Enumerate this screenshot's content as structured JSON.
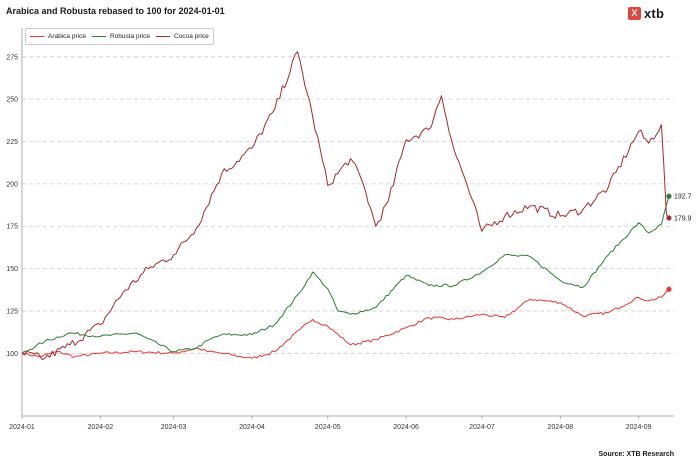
{
  "title": "Arabica and Robusta rebased to 100 for 2024-01-01",
  "logo": {
    "mark": "X",
    "text": "xtb"
  },
  "source": "Source: XTB Research",
  "chart_data": {
    "type": "line",
    "title": "Arabica and Robusta rebased to 100 for 2024-01-01",
    "xlabel": "",
    "ylabel": "",
    "x_range": [
      "2024-01-01",
      "2024-09-15"
    ],
    "ylim": [
      63,
      292
    ],
    "yticks": [
      100,
      125,
      150,
      175,
      200,
      225,
      250,
      275
    ],
    "xticks": [
      "2024-01",
      "2024-02",
      "2024-03",
      "2024-04",
      "2024-05",
      "2024-06",
      "2024-07",
      "2024-08",
      "2024-09"
    ],
    "grid": "horizontal dashed",
    "legend": "top-left",
    "series": [
      {
        "name": "Arabica price",
        "color": "#e53935",
        "end_label": null,
        "points": [
          [
            "2024-01-01",
            100
          ],
          [
            "2024-01-08",
            98
          ],
          [
            "2024-01-15",
            101
          ],
          [
            "2024-01-22",
            98
          ],
          [
            "2024-02-01",
            100
          ],
          [
            "2024-02-15",
            101
          ],
          [
            "2024-03-01",
            100
          ],
          [
            "2024-03-10",
            103
          ],
          [
            "2024-03-15",
            101
          ],
          [
            "2024-03-20",
            100
          ],
          [
            "2024-04-01",
            97
          ],
          [
            "2024-04-10",
            101
          ],
          [
            "2024-04-20",
            114
          ],
          [
            "2024-04-25",
            120
          ],
          [
            "2024-05-01",
            116
          ],
          [
            "2024-05-10",
            105
          ],
          [
            "2024-05-20",
            108
          ],
          [
            "2024-06-01",
            115
          ],
          [
            "2024-06-10",
            121
          ],
          [
            "2024-06-20",
            120
          ],
          [
            "2024-07-01",
            123
          ],
          [
            "2024-07-10",
            121
          ],
          [
            "2024-07-20",
            132
          ],
          [
            "2024-08-01",
            130
          ],
          [
            "2024-08-10",
            122
          ],
          [
            "2024-08-20",
            124
          ],
          [
            "2024-09-01",
            133
          ],
          [
            "2024-09-05",
            131
          ],
          [
            "2024-09-10",
            133
          ],
          [
            "2024-09-13",
            137.8
          ]
        ]
      },
      {
        "name": "Robusta price",
        "color": "#2e7d32",
        "end_label": "192.7",
        "points": [
          [
            "2024-01-01",
            100
          ],
          [
            "2024-01-10",
            107
          ],
          [
            "2024-01-20",
            112
          ],
          [
            "2024-02-01",
            110
          ],
          [
            "2024-02-15",
            112
          ],
          [
            "2024-03-01",
            101
          ],
          [
            "2024-03-10",
            103
          ],
          [
            "2024-03-15",
            108
          ],
          [
            "2024-03-20",
            111
          ],
          [
            "2024-04-01",
            111
          ],
          [
            "2024-04-10",
            117
          ],
          [
            "2024-04-20",
            136
          ],
          [
            "2024-04-25",
            148
          ],
          [
            "2024-05-01",
            138
          ],
          [
            "2024-05-05",
            125
          ],
          [
            "2024-05-10",
            123
          ],
          [
            "2024-05-20",
            127
          ],
          [
            "2024-06-01",
            146
          ],
          [
            "2024-06-10",
            140
          ],
          [
            "2024-06-20",
            140
          ],
          [
            "2024-07-01",
            148
          ],
          [
            "2024-07-10",
            158
          ],
          [
            "2024-07-20",
            157
          ],
          [
            "2024-08-01",
            143
          ],
          [
            "2024-08-10",
            139
          ],
          [
            "2024-08-20",
            158
          ],
          [
            "2024-09-01",
            177
          ],
          [
            "2024-09-05",
            171
          ],
          [
            "2024-09-10",
            176
          ],
          [
            "2024-09-13",
            192.7
          ]
        ]
      },
      {
        "name": "Cocoa price",
        "color": "#a52a2a",
        "end_label": "179.9",
        "points": [
          [
            "2024-01-01",
            100
          ],
          [
            "2024-01-10",
            97
          ],
          [
            "2024-01-20",
            105
          ],
          [
            "2024-02-01",
            117
          ],
          [
            "2024-02-10",
            136
          ],
          [
            "2024-02-20",
            150
          ],
          [
            "2024-03-01",
            158
          ],
          [
            "2024-03-10",
            174
          ],
          [
            "2024-03-20",
            206
          ],
          [
            "2024-04-01",
            221
          ],
          [
            "2024-04-10",
            244
          ],
          [
            "2024-04-19",
            278
          ],
          [
            "2024-04-25",
            240
          ],
          [
            "2024-05-01",
            199
          ],
          [
            "2024-05-10",
            215
          ],
          [
            "2024-05-15",
            200
          ],
          [
            "2024-05-20",
            175
          ],
          [
            "2024-05-25",
            190
          ],
          [
            "2024-06-01",
            226
          ],
          [
            "2024-06-10",
            232
          ],
          [
            "2024-06-15",
            252
          ],
          [
            "2024-06-20",
            220
          ],
          [
            "2024-06-25",
            200
          ],
          [
            "2024-07-01",
            172
          ],
          [
            "2024-07-10",
            181
          ],
          [
            "2024-07-20",
            187
          ],
          [
            "2024-08-01",
            181
          ],
          [
            "2024-08-10",
            185
          ],
          [
            "2024-08-20",
            198
          ],
          [
            "2024-09-01",
            231
          ],
          [
            "2024-09-05",
            224
          ],
          [
            "2024-09-10",
            235
          ],
          [
            "2024-09-12",
            182
          ],
          [
            "2024-09-13",
            179.9
          ]
        ]
      }
    ]
  }
}
